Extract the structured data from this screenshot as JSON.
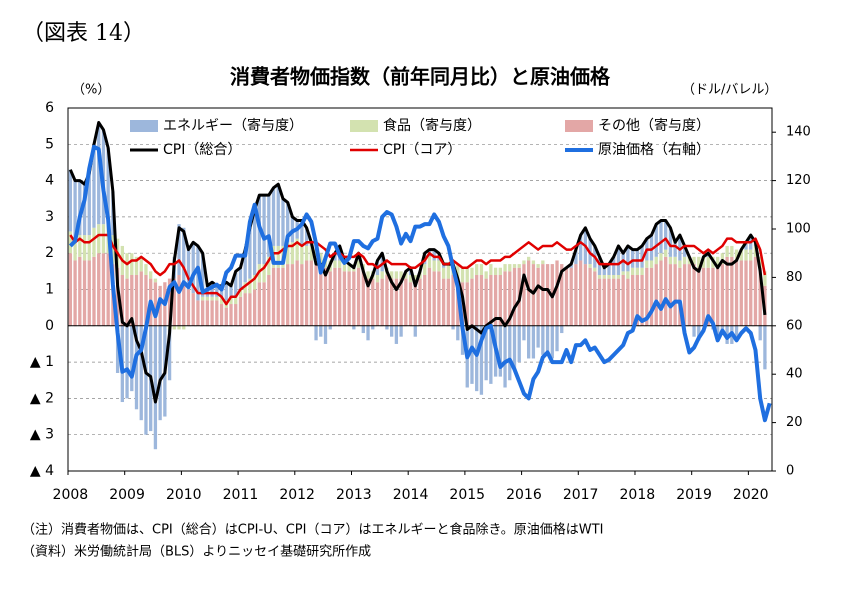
{
  "chart_data": {
    "type": "combo",
    "label": "（図表 14）",
    "title": "消費者物価指数（前年同月比）と原油価格",
    "y_label": "（%）",
    "y2_label": "（ドル/バレル）",
    "notes": [
      "（注）消費者物価は、CPI（総合）はCPI-U、CPI（コア）はエネルギーと食品除き。原油価格はWTI",
      "（資料）米労働統計局（BLS）よりニッセイ基礎研究所作成"
    ],
    "grid": true,
    "categories": [
      "2008",
      null,
      null,
      null,
      null,
      null,
      null,
      null,
      null,
      null,
      null,
      null,
      "2009",
      null,
      null,
      null,
      null,
      null,
      null,
      null,
      null,
      null,
      null,
      null,
      "2010",
      null,
      null,
      null,
      null,
      null,
      null,
      null,
      null,
      null,
      null,
      null,
      "2011",
      null,
      null,
      null,
      null,
      null,
      null,
      null,
      null,
      null,
      null,
      null,
      "2012",
      null,
      null,
      null,
      null,
      null,
      null,
      null,
      null,
      null,
      null,
      null,
      "2013",
      null,
      null,
      null,
      null,
      null,
      null,
      null,
      null,
      null,
      null,
      null,
      "2014",
      null,
      null,
      null,
      null,
      null,
      null,
      null,
      null,
      null,
      null,
      null,
      "2015",
      null,
      null,
      null,
      null,
      null,
      null,
      null,
      null,
      null,
      null,
      null,
      "2016",
      null,
      null,
      null,
      null,
      null,
      null,
      null,
      null,
      null,
      null,
      null,
      "2017",
      null,
      null,
      null,
      null,
      null,
      null,
      null,
      null,
      null,
      null,
      null,
      "2018",
      null,
      null,
      null,
      null,
      null,
      null,
      null,
      null,
      null,
      null,
      null,
      "2019",
      null,
      null,
      null,
      null,
      null,
      null,
      null,
      null,
      null,
      null,
      null,
      "2020",
      null,
      null,
      null,
      null
    ],
    "ylim": [
      -4,
      6
    ],
    "yticks": [
      {
        "value": -4,
        "label": "▲ 4"
      },
      {
        "value": -3,
        "label": "▲ 3"
      },
      {
        "value": -2,
        "label": "▲ 2"
      },
      {
        "value": -1,
        "label": "▲ 1"
      },
      0,
      1,
      2,
      3,
      4,
      5,
      6
    ],
    "y2lim": [
      0,
      150
    ],
    "y2ticks": [
      0,
      20,
      40,
      60,
      80,
      100,
      120,
      140
    ],
    "series": [
      {
        "name": "その他（寄与度）",
        "kind": "bar",
        "color": "#e3a7a6",
        "values": [
          2.0,
          1.8,
          1.9,
          1.8,
          1.8,
          1.9,
          2.0,
          2.0,
          2.0,
          1.7,
          1.6,
          1.4,
          1.3,
          1.4,
          1.4,
          1.5,
          1.4,
          1.3,
          1.2,
          1.1,
          1.2,
          1.3,
          1.3,
          1.4,
          1.2,
          1.0,
          0.9,
          0.7,
          0.7,
          0.7,
          0.7,
          0.7,
          0.6,
          0.5,
          0.6,
          0.6,
          0.8,
          0.9,
          0.9,
          1.0,
          1.2,
          1.2,
          1.4,
          1.6,
          1.6,
          1.6,
          1.7,
          1.7,
          1.8,
          1.7,
          1.8,
          1.8,
          1.8,
          1.7,
          1.6,
          1.5,
          1.6,
          1.6,
          1.5,
          1.5,
          1.5,
          1.6,
          1.5,
          1.3,
          1.3,
          1.2,
          1.3,
          1.4,
          1.3,
          1.3,
          1.3,
          1.3,
          1.2,
          1.2,
          1.3,
          1.4,
          1.6,
          1.5,
          1.5,
          1.3,
          1.3,
          1.4,
          1.3,
          1.2,
          1.2,
          1.3,
          1.4,
          1.4,
          1.3,
          1.4,
          1.4,
          1.4,
          1.5,
          1.5,
          1.6,
          1.6,
          1.7,
          1.8,
          1.7,
          1.6,
          1.7,
          1.7,
          1.7,
          1.8,
          1.7,
          1.6,
          1.6,
          1.7,
          1.8,
          1.7,
          1.6,
          1.5,
          1.3,
          1.3,
          1.3,
          1.3,
          1.3,
          1.4,
          1.3,
          1.4,
          1.4,
          1.4,
          1.6,
          1.6,
          1.7,
          1.8,
          1.9,
          1.7,
          1.7,
          1.6,
          1.7,
          1.7,
          1.7,
          1.6,
          1.6,
          1.6,
          1.6,
          1.6,
          1.7,
          1.9,
          1.9,
          1.8,
          1.8,
          1.8,
          1.8,
          1.9,
          1.6,
          1.1,
          null
        ]
      },
      {
        "name": "食品（寄与度）",
        "kind": "bar",
        "color": "#d3e2b0",
        "values": [
          0.6,
          0.6,
          0.6,
          0.7,
          0.7,
          0.8,
          0.8,
          0.8,
          0.8,
          0.8,
          0.8,
          0.8,
          0.7,
          0.6,
          0.5,
          0.4,
          0.3,
          0.2,
          0.1,
          0.0,
          0.0,
          -0.1,
          -0.1,
          -0.1,
          -0.1,
          0.0,
          0.0,
          0.0,
          0.1,
          0.1,
          0.1,
          0.1,
          0.2,
          0.2,
          0.2,
          0.2,
          0.2,
          0.3,
          0.4,
          0.4,
          0.5,
          0.5,
          0.5,
          0.6,
          0.6,
          0.6,
          0.6,
          0.6,
          0.6,
          0.5,
          0.4,
          0.4,
          0.3,
          0.3,
          0.3,
          0.3,
          0.2,
          0.2,
          0.2,
          0.2,
          0.2,
          0.2,
          0.2,
          0.2,
          0.2,
          0.2,
          0.2,
          0.2,
          0.2,
          0.2,
          0.2,
          0.2,
          0.2,
          0.2,
          0.2,
          0.3,
          0.3,
          0.3,
          0.3,
          0.3,
          0.4,
          0.4,
          0.4,
          0.4,
          0.4,
          0.3,
          0.3,
          0.3,
          0.2,
          0.3,
          0.2,
          0.2,
          0.2,
          0.2,
          0.1,
          0.1,
          0.1,
          0.1,
          0.1,
          0.1,
          0.1,
          0.0,
          0.0,
          0.0,
          0.0,
          0.0,
          0.0,
          0.0,
          0.0,
          0.0,
          0.1,
          0.1,
          0.1,
          0.1,
          0.1,
          0.1,
          0.1,
          0.1,
          0.2,
          0.2,
          0.2,
          0.2,
          0.2,
          0.2,
          0.2,
          0.2,
          0.2,
          0.2,
          0.2,
          0.2,
          0.2,
          0.2,
          0.2,
          0.3,
          0.3,
          0.3,
          0.3,
          0.3,
          0.3,
          0.3,
          0.3,
          0.3,
          0.3,
          0.3,
          0.3,
          0.3,
          0.3,
          0.4,
          null
        ]
      },
      {
        "name": "エネルギー（寄与度）",
        "kind": "bar",
        "color": "#9db7dc",
        "values": [
          1.7,
          1.6,
          1.5,
          1.4,
          1.7,
          2.3,
          2.8,
          2.6,
          2.1,
          1.2,
          -1.3,
          -2.1,
          -2.0,
          -1.8,
          -2.3,
          -2.6,
          -3.0,
          -2.9,
          -3.4,
          -2.6,
          -2.5,
          -1.4,
          0.6,
          1.4,
          1.5,
          1.1,
          1.4,
          1.5,
          1.2,
          0.3,
          0.4,
          0.3,
          0.3,
          0.5,
          0.3,
          0.7,
          0.6,
          0.9,
          1.4,
          1.8,
          1.9,
          1.9,
          1.7,
          1.6,
          1.7,
          1.3,
          1.1,
          0.7,
          0.5,
          0.7,
          0.5,
          0.1,
          -0.4,
          -0.3,
          -0.5,
          -0.1,
          0.2,
          0.4,
          0.1,
          0.0,
          -0.1,
          0.2,
          -0.2,
          -0.4,
          -0.1,
          0.4,
          0.5,
          -0.1,
          -0.3,
          -0.5,
          -0.3,
          0.0,
          0.2,
          -0.3,
          0.0,
          0.3,
          0.2,
          0.3,
          0.2,
          0.1,
          0.0,
          -0.1,
          -0.4,
          -0.8,
          -1.7,
          -1.6,
          -1.8,
          -1.9,
          -1.5,
          -1.6,
          -1.4,
          -1.4,
          -1.7,
          -1.5,
          -1.2,
          -1.0,
          -0.4,
          -0.9,
          -0.9,
          -0.6,
          -0.8,
          -0.7,
          -0.9,
          -0.7,
          -0.2,
          0.0,
          0.1,
          0.4,
          0.7,
          1.0,
          0.7,
          0.6,
          0.5,
          0.2,
          0.3,
          0.5,
          0.8,
          0.5,
          0.7,
          0.5,
          0.5,
          0.6,
          0.6,
          0.7,
          0.9,
          0.9,
          0.8,
          0.8,
          0.4,
          0.7,
          0.3,
          0.0,
          -0.3,
          -0.4,
          0.0,
          0.1,
          -0.1,
          -0.3,
          -0.2,
          -0.5,
          -0.5,
          -0.3,
          0.0,
          0.2,
          0.4,
          0.1,
          -0.4,
          -1.2,
          null
        ]
      },
      {
        "name": "CPI（総合）",
        "kind": "line",
        "color": "#000000",
        "width": 3,
        "values": [
          4.3,
          4.0,
          4.0,
          3.9,
          4.2,
          5.0,
          5.6,
          5.4,
          4.9,
          3.7,
          1.1,
          0.1,
          0.0,
          0.2,
          -0.4,
          -0.7,
          -1.3,
          -1.4,
          -2.1,
          -1.5,
          -1.3,
          -0.2,
          1.8,
          2.7,
          2.6,
          2.1,
          2.3,
          2.2,
          2.0,
          1.1,
          1.2,
          1.1,
          1.1,
          1.2,
          1.1,
          1.5,
          1.6,
          2.1,
          2.7,
          3.2,
          3.6,
          3.6,
          3.6,
          3.8,
          3.9,
          3.5,
          3.4,
          3.0,
          2.9,
          2.9,
          2.7,
          2.3,
          1.7,
          1.7,
          1.4,
          1.7,
          2.0,
          2.2,
          1.8,
          1.7,
          1.6,
          2.0,
          1.5,
          1.1,
          1.4,
          1.8,
          2.0,
          1.5,
          1.2,
          1.0,
          1.2,
          1.5,
          1.6,
          1.1,
          1.5,
          2.0,
          2.1,
          2.1,
          2.0,
          1.7,
          1.7,
          1.7,
          1.3,
          0.8,
          -0.1,
          0.0,
          -0.1,
          -0.2,
          0.0,
          0.1,
          0.2,
          0.2,
          0.0,
          0.2,
          0.5,
          0.7,
          1.4,
          1.0,
          0.9,
          1.1,
          1.0,
          1.0,
          0.8,
          1.1,
          1.5,
          1.6,
          1.7,
          2.1,
          2.5,
          2.7,
          2.4,
          2.2,
          1.9,
          1.6,
          1.7,
          1.9,
          2.2,
          2.0,
          2.2,
          2.1,
          2.1,
          2.2,
          2.4,
          2.5,
          2.8,
          2.9,
          2.9,
          2.7,
          2.3,
          2.5,
          2.2,
          1.9,
          1.6,
          1.5,
          1.9,
          2.0,
          1.8,
          1.6,
          1.8,
          1.7,
          1.7,
          1.8,
          2.1,
          2.3,
          2.5,
          2.3,
          1.5,
          0.3,
          null
        ]
      },
      {
        "name": "CPI（コア）",
        "kind": "line",
        "color": "#e00000",
        "width": 2.5,
        "values": [
          2.5,
          2.3,
          2.4,
          2.3,
          2.3,
          2.4,
          2.5,
          2.5,
          2.5,
          2.2,
          2.0,
          1.8,
          1.7,
          1.8,
          1.8,
          1.9,
          1.8,
          1.7,
          1.5,
          1.4,
          1.5,
          1.7,
          1.7,
          1.8,
          1.6,
          1.3,
          1.1,
          0.9,
          0.9,
          0.9,
          0.9,
          0.9,
          0.8,
          0.6,
          0.8,
          0.8,
          1.0,
          1.1,
          1.2,
          1.3,
          1.5,
          1.6,
          1.8,
          2.0,
          2.0,
          2.1,
          2.2,
          2.2,
          2.3,
          2.2,
          2.3,
          2.3,
          2.3,
          2.2,
          2.1,
          1.9,
          2.0,
          2.0,
          1.9,
          1.9,
          1.9,
          2.0,
          1.9,
          1.7,
          1.7,
          1.6,
          1.7,
          1.8,
          1.7,
          1.7,
          1.7,
          1.7,
          1.6,
          1.6,
          1.7,
          1.8,
          2.0,
          1.9,
          1.9,
          1.7,
          1.7,
          1.8,
          1.7,
          1.6,
          1.6,
          1.7,
          1.8,
          1.8,
          1.7,
          1.8,
          1.8,
          1.8,
          1.9,
          1.9,
          2.0,
          2.1,
          2.2,
          2.3,
          2.2,
          2.1,
          2.2,
          2.2,
          2.2,
          2.3,
          2.2,
          2.1,
          2.1,
          2.2,
          2.3,
          2.2,
          2.0,
          1.9,
          1.7,
          1.7,
          1.7,
          1.7,
          1.7,
          1.8,
          1.7,
          1.8,
          1.8,
          1.8,
          2.1,
          2.1,
          2.2,
          2.3,
          2.4,
          2.2,
          2.2,
          2.1,
          2.2,
          2.2,
          2.2,
          2.1,
          2.0,
          2.1,
          2.0,
          2.1,
          2.2,
          2.4,
          2.4,
          2.3,
          2.3,
          2.3,
          2.3,
          2.4,
          2.1,
          1.4,
          null
        ]
      },
      {
        "name": "原油価格（右軸）",
        "kind": "line",
        "axis": "y2",
        "color": "#1f6fe0",
        "width": 4,
        "values": [
          93,
          95,
          105,
          112,
          125,
          134,
          133,
          116,
          104,
          77,
          57,
          41,
          42,
          39,
          48,
          50,
          59,
          70,
          64,
          71,
          69,
          76,
          78,
          74,
          78,
          76,
          81,
          84,
          74,
          75,
          76,
          77,
          75,
          82,
          84,
          89,
          89,
          89,
          103,
          110,
          101,
          96,
          97,
          86,
          86,
          86,
          97,
          99,
          100,
          102,
          106,
          103,
          94,
          82,
          88,
          94,
          94,
          89,
          86,
          88,
          95,
          95,
          93,
          92,
          95,
          96,
          105,
          107,
          106,
          101,
          94,
          98,
          95,
          101,
          101,
          102,
          102,
          106,
          103,
          97,
          93,
          84,
          76,
          59,
          47,
          51,
          48,
          54,
          59,
          60,
          51,
          43,
          45,
          46,
          42,
          37,
          32,
          30,
          38,
          41,
          47,
          49,
          45,
          45,
          45,
          50,
          45,
          52,
          52,
          54,
          50,
          51,
          48,
          45,
          46,
          48,
          50,
          52,
          57,
          58,
          64,
          62,
          63,
          66,
          70,
          67,
          71,
          68,
          70,
          70,
          57,
          49,
          51,
          55,
          58,
          64,
          61,
          54,
          58,
          55,
          57,
          54,
          57,
          59,
          57,
          50,
          30,
          21,
          28
        ]
      }
    ]
  }
}
